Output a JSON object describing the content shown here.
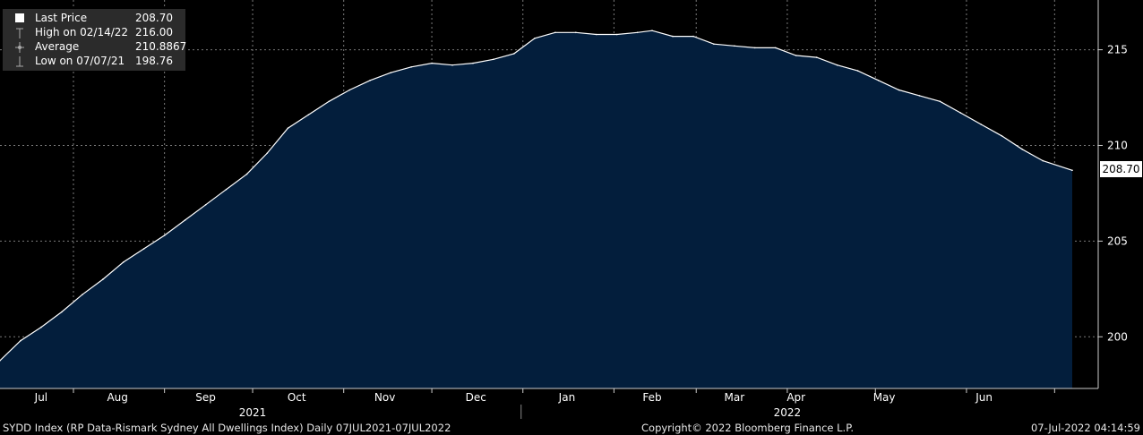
{
  "legend": {
    "items": [
      {
        "label": "Last Price",
        "value": "208.70",
        "icon": "square-swatch"
      },
      {
        "label": "High on 02/14/22",
        "value": "216.00",
        "icon": "high-marker"
      },
      {
        "label": "Average",
        "value": "210.8867",
        "icon": "average-marker"
      },
      {
        "label": "Low on 07/07/21",
        "value": "198.76",
        "icon": "low-marker"
      }
    ]
  },
  "last_price_label": "208.70",
  "footer": {
    "left": "SYDD Index (RP Data-Rismark Sydney All Dwellings Index)  Daily 07JUL2021-07JUL2022",
    "center": "Copyright© 2022 Bloomberg Finance L.P.",
    "right": "07-Jul-2022 04:14:59"
  },
  "colors": {
    "background": "#000000",
    "area_fill": "#031e3c",
    "line": "#ffffff",
    "grid": "#7a7a7a"
  },
  "chart_data": {
    "type": "area",
    "title": "",
    "xlabel": "",
    "ylabel": "",
    "ylim": [
      197.3,
      217.6
    ],
    "yticks": [
      200,
      205,
      210,
      215
    ],
    "month_labels": [
      "Jul",
      "Aug",
      "Sep",
      "Oct",
      "Nov",
      "Dec",
      "Jan",
      "Feb",
      "Mar",
      "Apr",
      "May",
      "Jun"
    ],
    "year_labels": [
      "2021",
      "2022"
    ],
    "grid": true,
    "series": [
      {
        "name": "Last Price",
        "x": [
          "2021-07-07",
          "2021-07-14",
          "2021-07-21",
          "2021-07-28",
          "2021-08-04",
          "2021-08-11",
          "2021-08-18",
          "2021-08-25",
          "2021-09-01",
          "2021-09-08",
          "2021-09-15",
          "2021-09-22",
          "2021-09-29",
          "2021-10-06",
          "2021-10-13",
          "2021-10-20",
          "2021-10-27",
          "2021-11-03",
          "2021-11-10",
          "2021-11-17",
          "2021-11-24",
          "2021-12-01",
          "2021-12-08",
          "2021-12-15",
          "2021-12-22",
          "2021-12-29",
          "2022-01-05",
          "2022-01-12",
          "2022-01-19",
          "2022-01-26",
          "2022-02-02",
          "2022-02-09",
          "2022-02-14",
          "2022-02-21",
          "2022-02-28",
          "2022-03-07",
          "2022-03-14",
          "2022-03-21",
          "2022-03-28",
          "2022-04-04",
          "2022-04-11",
          "2022-04-18",
          "2022-04-25",
          "2022-05-02",
          "2022-05-09",
          "2022-05-16",
          "2022-05-23",
          "2022-05-30",
          "2022-06-06",
          "2022-06-13",
          "2022-06-20",
          "2022-06-27",
          "2022-07-07"
        ],
        "values": [
          198.76,
          199.8,
          200.5,
          201.3,
          202.2,
          203.0,
          203.9,
          204.6,
          205.3,
          206.1,
          206.9,
          207.7,
          208.5,
          209.6,
          210.9,
          211.6,
          212.3,
          212.9,
          213.4,
          213.8,
          214.1,
          214.3,
          214.2,
          214.3,
          214.5,
          214.8,
          215.6,
          215.9,
          215.9,
          215.8,
          215.8,
          215.9,
          216.0,
          215.7,
          215.7,
          215.3,
          215.2,
          215.1,
          215.1,
          214.7,
          214.6,
          214.2,
          213.9,
          213.4,
          212.9,
          212.6,
          212.3,
          211.7,
          211.1,
          210.5,
          209.8,
          209.2,
          208.7
        ]
      }
    ]
  }
}
